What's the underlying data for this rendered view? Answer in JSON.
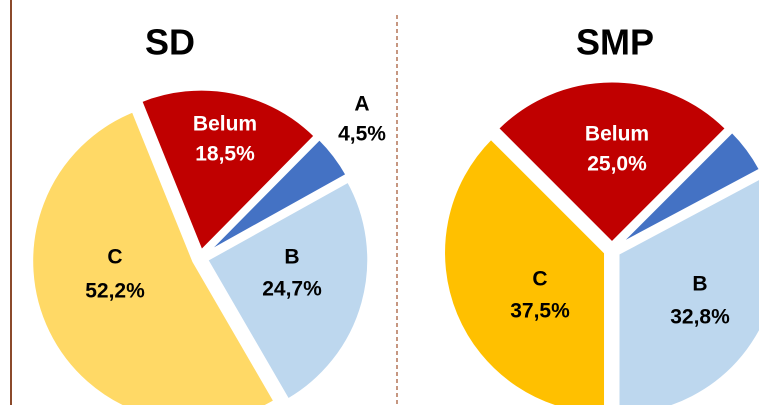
{
  "chart_data": [
    {
      "type": "pie",
      "title": "SD",
      "categories": [
        "Belum",
        "A",
        "B",
        "C"
      ],
      "values": [
        18.5,
        4.5,
        24.7,
        52.2
      ],
      "value_labels": [
        "18,5%",
        "4,5%",
        "24,7%",
        "52,2%"
      ],
      "colors": [
        "#c00000",
        "#4472c4",
        "#bdd7ee",
        "#ffd966"
      ]
    },
    {
      "type": "pie",
      "title": "SMP",
      "categories": [
        "Belum",
        null,
        "B",
        "C"
      ],
      "values": [
        25.0,
        4.7,
        32.8,
        37.5
      ],
      "value_labels": [
        "25,0%",
        null,
        "32,8%",
        "37,5%"
      ],
      "colors": [
        "#c00000",
        "#4472c4",
        "#bdd7ee",
        "#ffc000"
      ]
    }
  ]
}
